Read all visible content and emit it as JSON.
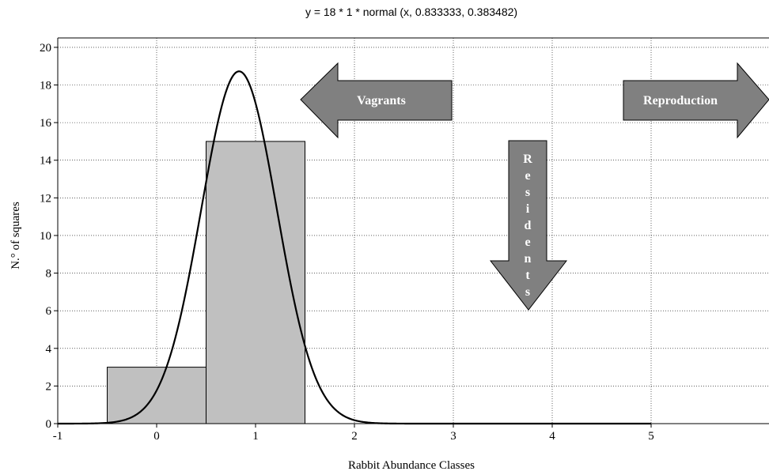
{
  "chart_data": {
    "type": "bar",
    "title": "y = 18 * 1 * normal (x, 0.833333, 0.383482)",
    "xlabel": "Rabbit Abundance Classes",
    "ylabel": "N.° of squares",
    "xlim": [
      -1,
      5
    ],
    "ylim": [
      0,
      20.5
    ],
    "x_ticks": [
      "-1",
      "0",
      "1",
      "2",
      "3",
      "4",
      "5"
    ],
    "y_ticks": [
      "0",
      "2",
      "4",
      "6",
      "8",
      "10",
      "12",
      "14",
      "16",
      "18",
      "20"
    ],
    "grid": true,
    "bars": [
      {
        "category": "0",
        "x_from": -0.5,
        "x_to": 0.5,
        "value": 3
      },
      {
        "category": "1",
        "x_from": 0.5,
        "x_to": 1.5,
        "value": 15
      }
    ],
    "bar_color": "#c0c0c0",
    "fit_curve": {
      "type": "normal",
      "n": 18,
      "bin_width": 1,
      "mean": 0.833333,
      "sd": 0.383482,
      "color": "#000000"
    },
    "annotations": [
      {
        "text": "Vagrants",
        "direction": "left"
      },
      {
        "text": "Reproduction",
        "direction": "right"
      },
      {
        "text": "Residents",
        "direction": "down"
      }
    ],
    "arrow_color": "#808080"
  }
}
